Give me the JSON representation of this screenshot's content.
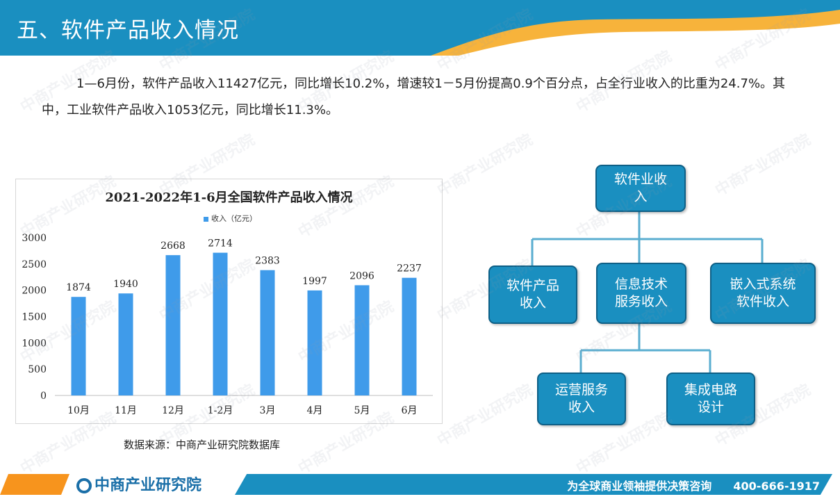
{
  "header": {
    "title": "五、软件产品收入情况"
  },
  "intro": {
    "text": "1—6月份，软件产品收入11427亿元，同比增长10.2%，增速较1－5月份提高0.9个百分点，占全行业收入的比重为24.7%。其中，工业软件产品收入1053亿元，同比增长11.3%。"
  },
  "chart_data": {
    "type": "bar",
    "title": "2021-2022年1-6月全国软件产品收入情况",
    "legend_label": "收入（亿元）",
    "legend_position": "top",
    "categories": [
      "10月",
      "11月",
      "12月",
      "1-2月",
      "3月",
      "4月",
      "5月",
      "6月"
    ],
    "values": [
      1874,
      1940,
      2668,
      2714,
      2383,
      1997,
      2096,
      2237
    ],
    "yticks": [
      0,
      500,
      1000,
      1500,
      2000,
      2500,
      3000
    ],
    "ylim": [
      0,
      3000
    ],
    "grid": false,
    "bar_color": "#3f9bea"
  },
  "source": "数据来源：中商产业研究院数据库",
  "diagram": {
    "root": "软件业收\n入",
    "level1": [
      "软件产品\n收入",
      "信息技术\n服务收入",
      "嵌入式系统\n软件收入"
    ],
    "level2": [
      "运营服务\n收入",
      "集成电路\n设计"
    ]
  },
  "footer": {
    "logo": "中商产业研究院",
    "slogan": "为全球商业领袖提供决策咨询",
    "phone": "400-666-1917"
  },
  "watermark": "中商产业研究院"
}
